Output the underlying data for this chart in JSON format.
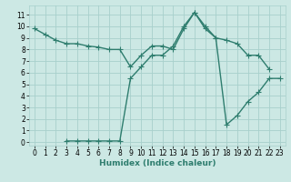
{
  "line1_x": [
    0,
    1,
    2,
    3,
    4,
    5,
    6,
    7,
    8,
    9,
    10,
    11,
    12,
    13,
    14,
    15,
    16,
    17,
    18,
    19,
    20,
    21,
    22
  ],
  "line1_y": [
    9.8,
    9.3,
    8.8,
    8.5,
    8.5,
    8.3,
    8.2,
    8.0,
    8.0,
    6.5,
    7.5,
    8.3,
    8.3,
    8.0,
    9.8,
    11.2,
    9.8,
    9.0,
    8.8,
    8.5,
    7.5,
    7.5,
    6.3
  ],
  "line2_x": [
    3,
    4,
    5,
    6,
    7,
    8,
    9,
    10,
    11,
    12,
    13,
    14,
    15,
    16,
    17,
    18,
    19,
    20,
    21,
    22,
    23
  ],
  "line2_y": [
    0.1,
    0.1,
    0.1,
    0.1,
    0.1,
    0.1,
    5.5,
    6.5,
    7.5,
    7.5,
    8.3,
    10.0,
    11.2,
    10.0,
    9.0,
    1.5,
    2.3,
    3.5,
    4.3,
    5.5,
    5.5
  ],
  "line_color": "#2e7d6e",
  "bg_color": "#cce8e4",
  "grid_color": "#a8d0cc",
  "xlabel": "Humidex (Indice chaleur)",
  "xlim": [
    -0.5,
    23.5
  ],
  "ylim": [
    -0.3,
    11.8
  ],
  "xticks": [
    0,
    1,
    2,
    3,
    4,
    5,
    6,
    7,
    8,
    9,
    10,
    11,
    12,
    13,
    14,
    15,
    16,
    17,
    18,
    19,
    20,
    21,
    22,
    23
  ],
  "yticks": [
    0,
    1,
    2,
    3,
    4,
    5,
    6,
    7,
    8,
    9,
    10,
    11
  ],
  "marker": "+",
  "markersize": 4,
  "linewidth": 1.0,
  "xlabel_fontsize": 6.5,
  "tick_fontsize": 5.5
}
